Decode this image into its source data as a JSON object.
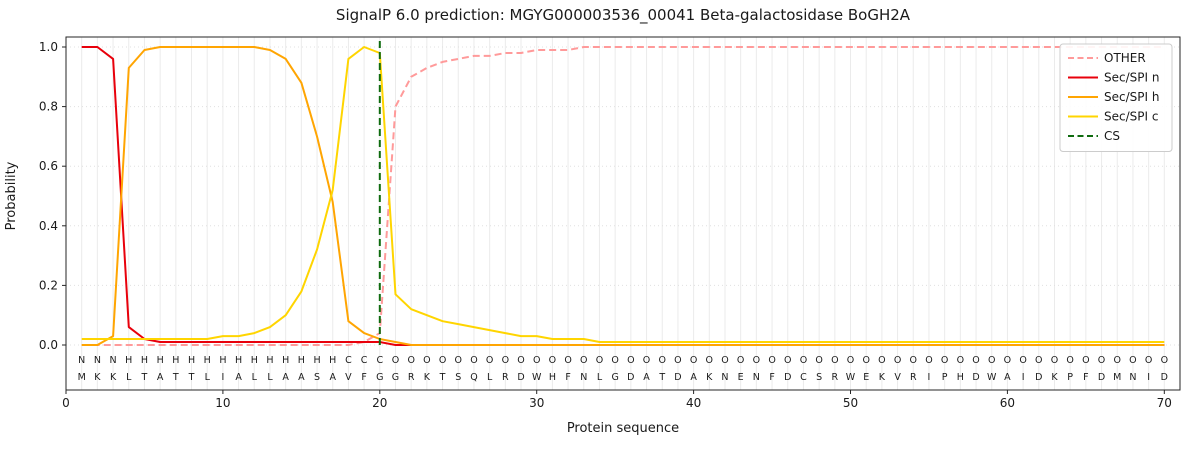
{
  "chart_data": {
    "type": "line",
    "title": "SignalP 6.0 prediction: MGYG000003536_00041 Beta-galactosidase BoGH2A",
    "xlabel": "Protein sequence",
    "ylabel": "Probability",
    "xlim": [
      0,
      71
    ],
    "ylim": [
      0,
      1.0
    ],
    "xticks": [
      0,
      10,
      20,
      30,
      40,
      50,
      60,
      70
    ],
    "yticks": [
      0,
      0.2,
      0.4,
      0.6,
      0.8,
      1
    ],
    "x_start": 1,
    "grid": "vertical line per residue, light gray; dotted horizontal at y ticks",
    "legend_position": "upper right",
    "series": [
      {
        "name": "OTHER",
        "color": "#ff9a9a",
        "dash": true,
        "values": [
          0,
          0,
          0,
          0,
          0,
          0,
          0,
          0,
          0,
          0,
          0,
          0,
          0,
          0,
          0,
          0,
          0,
          0,
          0.01,
          0.04,
          0.8,
          0.9,
          0.93,
          0.95,
          0.96,
          0.97,
          0.97,
          0.98,
          0.98,
          0.99,
          0.99,
          0.99,
          1,
          1,
          1,
          1,
          1,
          1,
          1,
          1,
          1,
          1,
          1,
          1,
          1,
          1,
          1,
          1,
          1,
          1,
          1,
          1,
          1,
          1,
          1,
          1,
          1,
          1,
          1,
          1,
          1,
          1,
          1,
          1,
          1,
          1,
          1,
          1,
          1,
          1
        ]
      },
      {
        "name": "Sec/SPI n",
        "color": "#e8000b",
        "dash": false,
        "values": [
          1,
          1,
          0.96,
          0.06,
          0.02,
          0.01,
          0.01,
          0.01,
          0.01,
          0.01,
          0.01,
          0.01,
          0.01,
          0.01,
          0.01,
          0.01,
          0.01,
          0.01,
          0.01,
          0.01,
          0,
          0,
          0,
          0,
          0,
          0,
          0,
          0,
          0,
          0,
          0,
          0,
          0,
          0,
          0,
          0,
          0,
          0,
          0,
          0,
          0,
          0,
          0,
          0,
          0,
          0,
          0,
          0,
          0,
          0,
          0,
          0,
          0,
          0,
          0,
          0,
          0,
          0,
          0,
          0,
          0,
          0,
          0,
          0,
          0,
          0,
          0,
          0,
          0,
          0
        ]
      },
      {
        "name": "Sec/SPI h",
        "color": "#ffa502",
        "dash": false,
        "values": [
          0,
          0,
          0.03,
          0.93,
          0.99,
          1,
          1,
          1,
          1,
          1,
          1,
          1,
          0.99,
          0.96,
          0.88,
          0.7,
          0.48,
          0.08,
          0.04,
          0.02,
          0.01,
          0,
          0,
          0,
          0,
          0,
          0,
          0,
          0,
          0,
          0,
          0,
          0,
          0,
          0,
          0,
          0,
          0,
          0,
          0,
          0,
          0,
          0,
          0,
          0,
          0,
          0,
          0,
          0,
          0,
          0,
          0,
          0,
          0,
          0,
          0,
          0,
          0,
          0,
          0,
          0,
          0,
          0,
          0,
          0,
          0,
          0,
          0,
          0,
          0
        ]
      },
      {
        "name": "Sec/SPI c",
        "color": "#ffd500",
        "dash": false,
        "values": [
          0.02,
          0.02,
          0.02,
          0.02,
          0.02,
          0.02,
          0.02,
          0.02,
          0.02,
          0.03,
          0.03,
          0.04,
          0.06,
          0.1,
          0.18,
          0.32,
          0.52,
          0.96,
          1,
          0.98,
          0.17,
          0.12,
          0.1,
          0.08,
          0.07,
          0.06,
          0.05,
          0.04,
          0.03,
          0.03,
          0.02,
          0.02,
          0.02,
          0.01,
          0.01,
          0.01,
          0.01,
          0.01,
          0.01,
          0.01,
          0.01,
          0.01,
          0.01,
          0.01,
          0.01,
          0.01,
          0.01,
          0.01,
          0.01,
          0.01,
          0.01,
          0.01,
          0.01,
          0.01,
          0.01,
          0.01,
          0.01,
          0.01,
          0.01,
          0.01,
          0.01,
          0.01,
          0.01,
          0.01,
          0.01,
          0.01,
          0.01,
          0.01,
          0.01,
          0.01
        ]
      }
    ],
    "cs_line": {
      "name": "CS",
      "x": 20,
      "color": "#0f6b0f",
      "dash": true
    },
    "sequence": "MKKLTATTLIALLAASAVFGGRKTSQLRDWHFNLGDATDAKNENFDCSRWEKVRIPHDWAIDKPFDMNID",
    "region_labels": "NNNHHHHHHHHHHHHHHCCCOOOOOOOOOOOOOOOOOOOOOOOOOOOOOOOOOOOOOOOOOOOOOOOOOO",
    "region_colors": {
      "N": "#e8000b",
      "H": "#ffa502",
      "C": "#f0c400",
      "O": "#b3b3b3"
    },
    "sequence_color": "#1a1a1a"
  }
}
